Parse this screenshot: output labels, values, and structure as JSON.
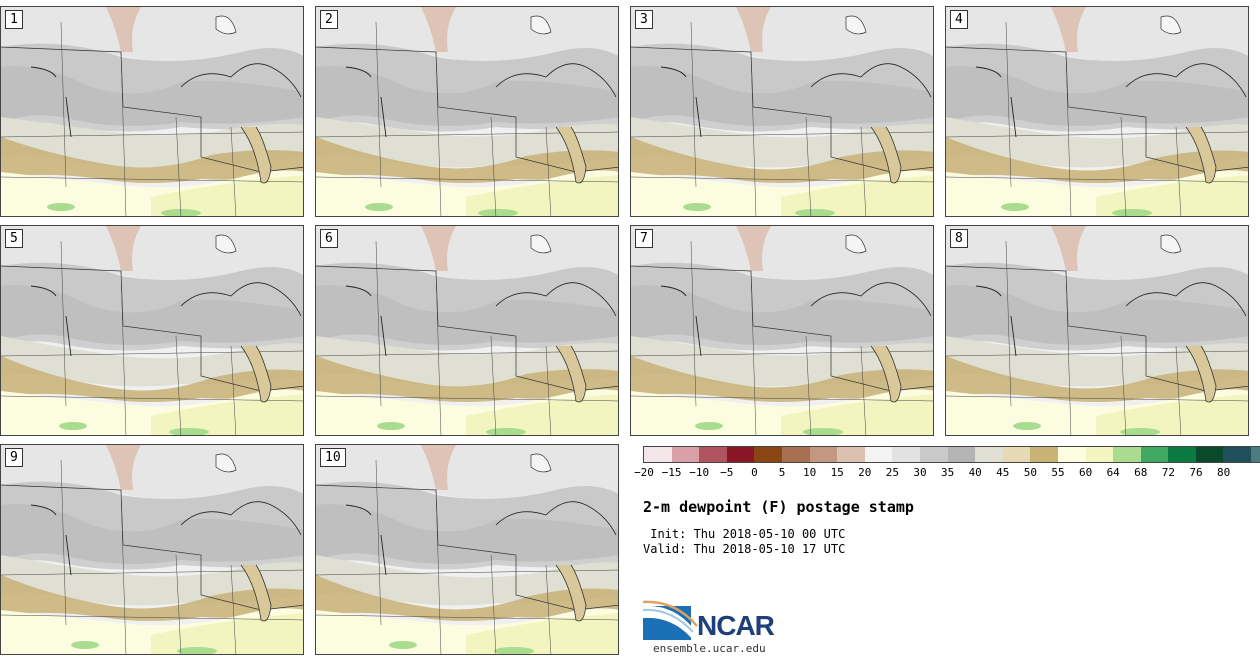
{
  "panels": [
    {
      "label": "1"
    },
    {
      "label": "2"
    },
    {
      "label": "3"
    },
    {
      "label": "4"
    },
    {
      "label": "5"
    },
    {
      "label": "6"
    },
    {
      "label": "7"
    },
    {
      "label": "8"
    },
    {
      "label": "9"
    },
    {
      "label": "10"
    }
  ],
  "colorbar": {
    "colors": [
      "#f5e6ea",
      "#d9a0a8",
      "#b05560",
      "#8a1525",
      "#8a4515",
      "#a87050",
      "#c49880",
      "#dcc0b0",
      "#f3f3f3",
      "#e2e2e2",
      "#c9c9c9",
      "#b4b4b4",
      "#dfdfd3",
      "#e6d9b3",
      "#c8b276",
      "#fcfce0",
      "#f2f5c0",
      "#a9dc8e",
      "#3fa962",
      "#0a7a40",
      "#0a4a2a",
      "#1e4f5a",
      "#4e7b80"
    ],
    "ticks": [
      "−20",
      "−15",
      "−10",
      "−5",
      "0",
      "5",
      "10",
      "15",
      "20",
      "25",
      "30",
      "35",
      "40",
      "45",
      "50",
      "55",
      "60",
      "64",
      "68",
      "72",
      "76",
      "80"
    ]
  },
  "title": "2-m dewpoint (F) postage stamp",
  "init": " Init: Thu 2018-05-10 00 UTC",
  "valid": "Valid: Thu 2018-05-10 17 UTC",
  "logo": {
    "name": "NCAR",
    "url": "ensemble.ucar.edu"
  }
}
